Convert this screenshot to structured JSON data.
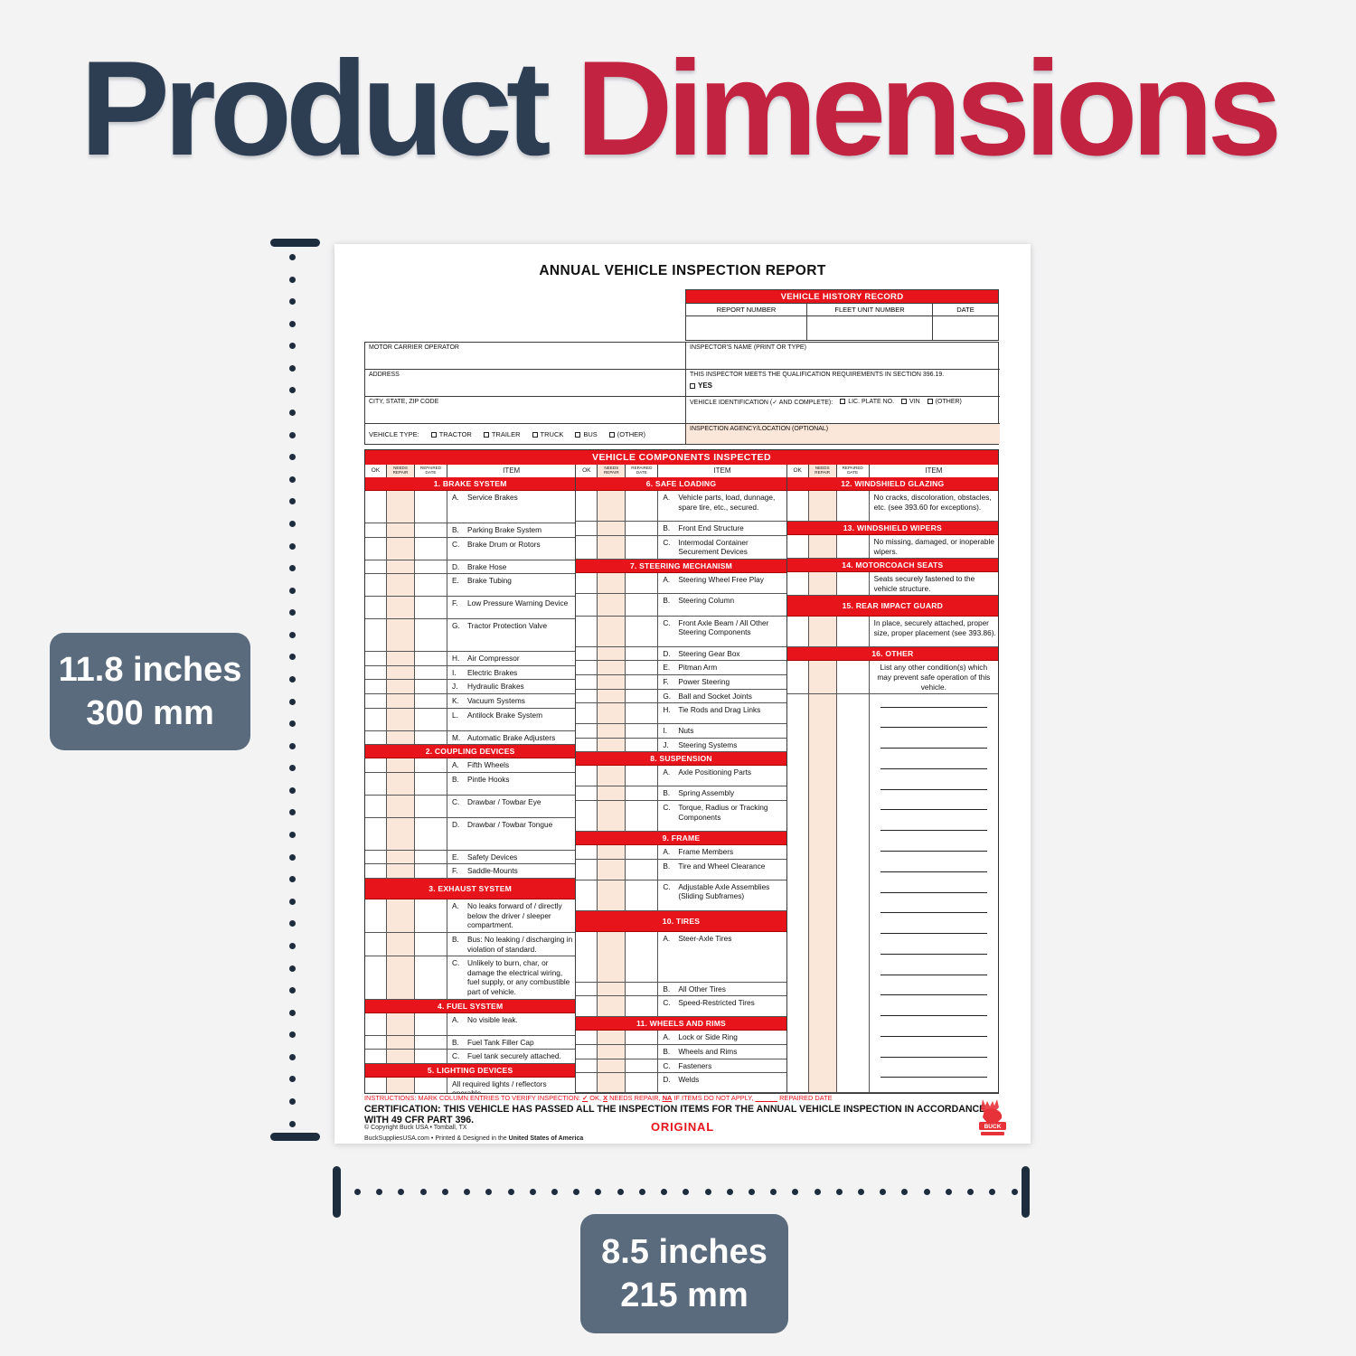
{
  "colors": {
    "form_red": "#e8141c",
    "title_navy": "#2d3e53",
    "title_red": "#c22340",
    "slate": "#5a6b7d",
    "peach": "#fbe7d9",
    "dots": "#1e2d3e"
  },
  "title": {
    "part1": "Product",
    "part2": "Dimensions"
  },
  "dimensions": {
    "height": {
      "inches": "11.8 inches",
      "mm": "300 mm"
    },
    "width": {
      "inches": "8.5 inches",
      "mm": "215 mm"
    }
  },
  "form": {
    "title": "ANNUAL VEHICLE INSPECTION REPORT",
    "history": {
      "banner": "VEHICLE HISTORY RECORD",
      "cols": [
        "REPORT NUMBER",
        "FLEET UNIT NUMBER",
        "DATE"
      ]
    },
    "left_fields": [
      "MOTOR CARRIER OPERATOR",
      "ADDRESS",
      "CITY, STATE, ZIP CODE"
    ],
    "vehicle_type": {
      "label": "VEHICLE TYPE:",
      "options": [
        "TRACTOR",
        "TRAILER",
        "TRUCK",
        "BUS",
        "(OTHER)"
      ]
    },
    "inspector_label": "INSPECTOR'S NAME (PRINT OR TYPE)",
    "qualification": "THIS INSPECTOR MEETS THE QUALIFICATION REQUIREMENTS IN SECTION 396.19.",
    "yes_label": "YES",
    "vehicle_id": {
      "label": "VEHICLE IDENTIFICATION (✓ AND COMPLETE):",
      "options": [
        "LIC. PLATE NO.",
        "VIN",
        "(OTHER)"
      ]
    },
    "agency_label": "INSPECTION AGENCY/LOCATION (OPTIONAL)",
    "components": {
      "banner": "VEHICLE COMPONENTS INSPECTED",
      "col_headers": {
        "ok": "OK",
        "needs": [
          "NEEDS",
          "REPAIR"
        ],
        "date": [
          "REPAIRED",
          "DATE"
        ],
        "item": "ITEM"
      },
      "columns": [
        [
          {
            "t": "b",
            "x": "1. BRAKE SYSTEM",
            "h": "b"
          },
          {
            "t": "i",
            "l": "A.",
            "x": "Service Brakes",
            "h": "l"
          },
          {
            "t": "i",
            "l": "B.",
            "x": "Parking Brake System",
            "h": "s"
          },
          {
            "t": "i",
            "l": "C.",
            "x": "Brake Drum or Rotors",
            "h": "m"
          },
          {
            "t": "i",
            "l": "D.",
            "x": "Brake Hose",
            "h": "s"
          },
          {
            "t": "i",
            "l": "E.",
            "x": "Brake Tubing",
            "h": "m"
          },
          {
            "t": "i",
            "l": "F.",
            "x": "Low Pressure Warning Device",
            "h": "m"
          },
          {
            "t": "i",
            "l": "G.",
            "x": "Tractor Protection Valve",
            "h": "l"
          },
          {
            "t": "i",
            "l": "H.",
            "x": "Air Compressor",
            "h": "s"
          },
          {
            "t": "i",
            "l": "I.",
            "x": "Electric Brakes",
            "h": "s"
          },
          {
            "t": "i",
            "l": "J.",
            "x": "Hydraulic Brakes",
            "h": "s"
          },
          {
            "t": "i",
            "l": "K.",
            "x": "Vacuum Systems",
            "h": "s"
          },
          {
            "t": "i",
            "l": "L.",
            "x": "Antilock Brake System",
            "h": "m"
          },
          {
            "t": "i",
            "l": "M.",
            "x": "Automatic Brake Adjusters",
            "h": "s"
          },
          {
            "t": "b",
            "x": "2. COUPLING DEVICES",
            "h": "b"
          },
          {
            "t": "i",
            "l": "A.",
            "x": "Fifth Wheels",
            "h": "s"
          },
          {
            "t": "i",
            "l": "B.",
            "x": "Pintle Hooks",
            "h": "m"
          },
          {
            "t": "i",
            "l": "C.",
            "x": "Drawbar / Towbar Eye",
            "h": "m"
          },
          {
            "t": "i",
            "l": "D.",
            "x": "Drawbar / Towbar Tongue",
            "h": "l"
          },
          {
            "t": "i",
            "l": "E.",
            "x": "Safety Devices",
            "h": "s"
          },
          {
            "t": "i",
            "l": "F.",
            "x": "Saddle-Mounts",
            "h": "s"
          },
          {
            "t": "b",
            "x": "3. EXHAUST SYSTEM",
            "h": "bt"
          },
          {
            "t": "i",
            "l": "A.",
            "x": "No leaks forward of / directly below the driver / sleeper compartment.",
            "h": "l3"
          },
          {
            "t": "i",
            "l": "B.",
            "x": "Bus: No leaking / discharging in violation of standard.",
            "h": "l2"
          },
          {
            "t": "i",
            "l": "C.",
            "x": "Unlikely to burn, char, or damage the electrical wiring, fuel supply, or any combustible part of vehicle.",
            "h": "l4"
          },
          {
            "t": "b",
            "x": "4. FUEL SYSTEM",
            "h": "b"
          },
          {
            "t": "i",
            "l": "A.",
            "x": "No visible leak.",
            "h": "m"
          },
          {
            "t": "i",
            "l": "B.",
            "x": "Fuel Tank Filler Cap",
            "h": "s"
          },
          {
            "t": "i",
            "l": "C.",
            "x": "Fuel tank securely attached.",
            "h": "s"
          },
          {
            "t": "b",
            "x": "5. LIGHTING DEVICES",
            "h": "b"
          },
          {
            "t": "i",
            "l": "",
            "x": "All required lights / reflectors operable.",
            "h": "l2",
            "grow": true
          }
        ],
        [
          {
            "t": "b",
            "x": "6. SAFE LOADING",
            "h": "b"
          },
          {
            "t": "i",
            "l": "A.",
            "x": "Vehicle parts, load, dunnage, spare tire, etc., secured.",
            "h": "l3"
          },
          {
            "t": "i",
            "l": "B.",
            "x": "Front End Structure",
            "h": "s"
          },
          {
            "t": "i",
            "l": "C.",
            "x": "Intermodal Container Securement Devices",
            "h": "l2"
          },
          {
            "t": "b",
            "x": "7. STEERING MECHANISM",
            "h": "b"
          },
          {
            "t": "i",
            "l": "A.",
            "x": "Steering Wheel Free Play",
            "h": "l2"
          },
          {
            "t": "i",
            "l": "B.",
            "x": "Steering Column",
            "h": "m"
          },
          {
            "t": "i",
            "l": "C.",
            "x": "Front Axle Beam / All Other Steering Components",
            "h": "l3"
          },
          {
            "t": "i",
            "l": "D.",
            "x": "Steering Gear Box",
            "h": "s"
          },
          {
            "t": "i",
            "l": "E.",
            "x": "Pitman Arm",
            "h": "s"
          },
          {
            "t": "i",
            "l": "F.",
            "x": "Power Steering",
            "h": "s"
          },
          {
            "t": "i",
            "l": "G.",
            "x": "Ball and Socket Joints",
            "h": "s"
          },
          {
            "t": "i",
            "l": "H.",
            "x": "Tie Rods and Drag Links",
            "h": "l2"
          },
          {
            "t": "i",
            "l": "I.",
            "x": "Nuts",
            "h": "s"
          },
          {
            "t": "i",
            "l": "J.",
            "x": "Steering Systems",
            "h": "s"
          },
          {
            "t": "b",
            "x": "8. SUSPENSION",
            "h": "b"
          },
          {
            "t": "i",
            "l": "A.",
            "x": "Axle Positioning Parts",
            "h": "l2"
          },
          {
            "t": "i",
            "l": "B.",
            "x": "Spring Assembly",
            "h": "s"
          },
          {
            "t": "i",
            "l": "C.",
            "x": "Torque, Radius or Tracking Components",
            "h": "l3"
          },
          {
            "t": "b",
            "x": "9. FRAME",
            "h": "b"
          },
          {
            "t": "i",
            "l": "A.",
            "x": "Frame Members",
            "h": "s"
          },
          {
            "t": "i",
            "l": "B.",
            "x": "Tire and Wheel Clearance",
            "h": "l2"
          },
          {
            "t": "i",
            "l": "C.",
            "x": "Adjustable Axle Assemblies (Sliding Subframes)",
            "h": "l3"
          },
          {
            "t": "b",
            "x": "10. TIRES",
            "h": "bt"
          },
          {
            "t": "i",
            "l": "A.",
            "x": "Steer-Axle Tires",
            "h": "xl"
          },
          {
            "t": "i",
            "l": "B.",
            "x": "All Other Tires",
            "h": "s"
          },
          {
            "t": "i",
            "l": "C.",
            "x": "Speed-Restricted Tires",
            "h": "l2"
          },
          {
            "t": "b",
            "x": "11. WHEELS AND RIMS",
            "h": "b"
          },
          {
            "t": "i",
            "l": "A.",
            "x": "Lock or Side Ring",
            "h": "s"
          },
          {
            "t": "i",
            "l": "B.",
            "x": "Wheels and Rims",
            "h": "s"
          },
          {
            "t": "i",
            "l": "C.",
            "x": "Fasteners",
            "h": "s"
          },
          {
            "t": "i",
            "l": "D.",
            "x": "Welds",
            "h": "s",
            "grow": true
          }
        ],
        [
          {
            "t": "b",
            "x": "12. WINDSHIELD GLAZING",
            "h": "b"
          },
          {
            "t": "i",
            "l": "",
            "x": "No cracks, discoloration, obstacles, etc. (see 393.60 for exceptions).",
            "h": "l3"
          },
          {
            "t": "b",
            "x": "13. WINDSHIELD WIPERS",
            "h": "b"
          },
          {
            "t": "i",
            "l": "",
            "x": "No missing, damaged, or inoperable wipers.",
            "h": "l2"
          },
          {
            "t": "b",
            "x": "14. MOTORCOACH SEATS",
            "h": "b"
          },
          {
            "t": "i",
            "l": "",
            "x": "Seats securely fastened to the vehicle structure.",
            "h": "l2"
          },
          {
            "t": "b",
            "x": "15. REAR IMPACT GUARD",
            "h": "bt"
          },
          {
            "t": "i",
            "l": "",
            "x": "In place, securely attached, proper size, proper placement (see 393.86).",
            "h": "l3"
          },
          {
            "t": "b",
            "x": "16. OTHER",
            "h": "b"
          },
          {
            "t": "i",
            "l": "",
            "x": "List any other condition(s) which may prevent safe operation of this vehicle.",
            "h": "l3",
            "center": true
          },
          {
            "t": "lines",
            "n": 19,
            "grow": true
          }
        ]
      ]
    },
    "instructions": [
      {
        "x": "INSTRUCTIONS: MARK COLUMN ENTRIES TO VERIFY INSPECTION:  "
      },
      {
        "x": "✓",
        "u": true
      },
      {
        "x": "  OK,  "
      },
      {
        "x": "X",
        "u": true
      },
      {
        "x": "  NEEDS REPAIR,  "
      },
      {
        "x": "NA",
        "u": true
      },
      {
        "x": "  IF ITEMS DO NOT APPLY,  "
      },
      {
        "x": "            ",
        "u": true
      },
      {
        "x": "  REPAIRED DATE"
      }
    ],
    "certification": "CERTIFICATION: THIS VEHICLE HAS PASSED ALL THE INSPECTION ITEMS FOR THE ANNUAL VEHICLE INSPECTION IN ACCORDANCE WITH 49 CFR PART 396.",
    "footer": {
      "copyright1": "© Copyright Buck USA • Tomball, TX",
      "copyright2_pre": "BuckSuppliesUSA.com • Printed & Designed in the ",
      "copyright2_bold": "United States of America",
      "original": "ORIGINAL",
      "logo_text": "BUCK"
    }
  }
}
